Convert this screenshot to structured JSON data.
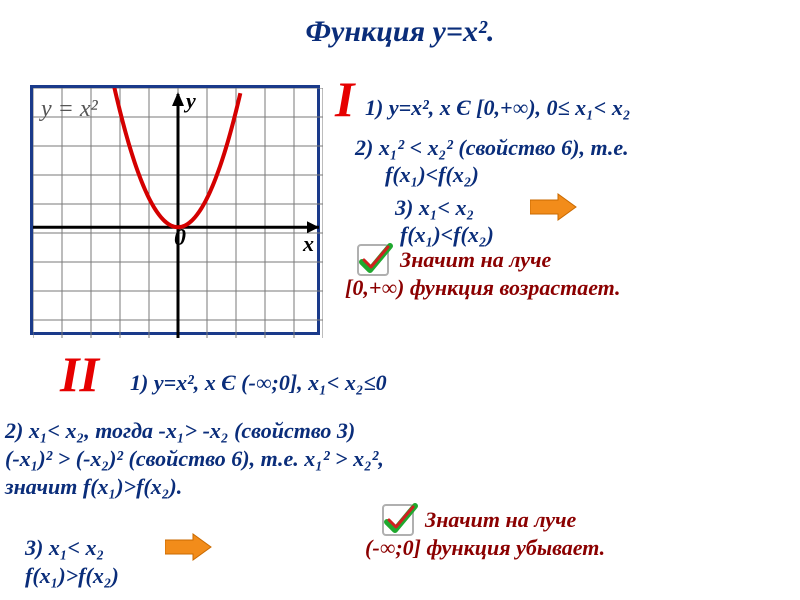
{
  "title": {
    "text": "Функция у=х².",
    "color": "#0a2d7a",
    "fontsize": 30
  },
  "colors": {
    "darkblue": "#0a2d7a",
    "brightred": "#e60000",
    "darkred": "#8b0000",
    "black": "#000000",
    "gridline": "#7a7a7a",
    "curve": "#d40000",
    "orange": "#f28c1a",
    "orange_dark": "#c96a00",
    "check_border": "#b0b0b0",
    "check_fill": "#ffffff",
    "check_green": "#1fa82e",
    "check_red": "#d02020"
  },
  "graph": {
    "func_label": "y = x²",
    "x_label": "x",
    "y_label": "y",
    "origin_label": "0",
    "func_label_fontsize": 24,
    "axis_label_fontsize": 22,
    "origin_fontsize": 24,
    "grid_step": 29,
    "cols": 10,
    "rows": 8,
    "origin_col": 5,
    "origin_row": 4.8
  },
  "roman1": {
    "text": "I",
    "color": "#e60000",
    "fontsize": 50
  },
  "line1_1": {
    "text": "1) у=х², х Є [0,+∞), 0≤ х₁< х₂",
    "color": "#0a2d7a",
    "fontsize": 22
  },
  "line1_2a": {
    "text": "2) х₁² < х₂² (свойство 6), т.е.",
    "color": "#0a2d7a",
    "fontsize": 22
  },
  "line1_2b": {
    "text": "f(x₁)<f(x₂)",
    "color": "#0a2d7a",
    "fontsize": 22
  },
  "line1_3": {
    "text": "3) х₁< х₂",
    "color": "#0a2d7a",
    "fontsize": 22
  },
  "line1_3b": {
    "text": "f(x₁)<f(x₂)",
    "color": "#0a2d7a",
    "fontsize": 22
  },
  "conclusion1a": {
    "text": "Значит на луче",
    "color": "#8b0000",
    "fontsize": 22
  },
  "conclusion1b": {
    "text": "[0,+∞) функция возрастает.",
    "color": "#8b0000",
    "fontsize": 22
  },
  "roman2": {
    "text": "II",
    "color": "#e60000",
    "fontsize": 50
  },
  "line2_1": {
    "text": "1) у=х², х Є (-∞;0],  х₁< х₂≤0",
    "color": "#0a2d7a",
    "fontsize": 22
  },
  "line2_2a": {
    "text": "2) х₁< х₂, тогда -х₁> -х₂ (свойство 3)",
    "color": "#0a2d7a",
    "fontsize": 22
  },
  "line2_2b": {
    "text": "(-х₁)² > (-х₂)² (свойство 6), т.е. х₁² > х₂²,",
    "color": "#0a2d7a",
    "fontsize": 22
  },
  "line2_2c": {
    "text": "значит  f(x₁)>f(x₂).",
    "color": "#0a2d7a",
    "fontsize": 22
  },
  "line2_3": {
    "text": "3) х₁< х₂",
    "color": "#0a2d7a",
    "fontsize": 22
  },
  "line2_3b": {
    "text": "f(x₁)>f(x₂)",
    "color": "#0a2d7a",
    "fontsize": 22
  },
  "conclusion2a": {
    "text": "Значит на луче",
    "color": "#8b0000",
    "fontsize": 22
  },
  "conclusion2b": {
    "text": "(-∞;0] функция убывает.",
    "color": "#8b0000",
    "fontsize": 22
  },
  "arrow": {
    "width": 48,
    "height": 30
  },
  "checkmark": {
    "size": 36
  }
}
